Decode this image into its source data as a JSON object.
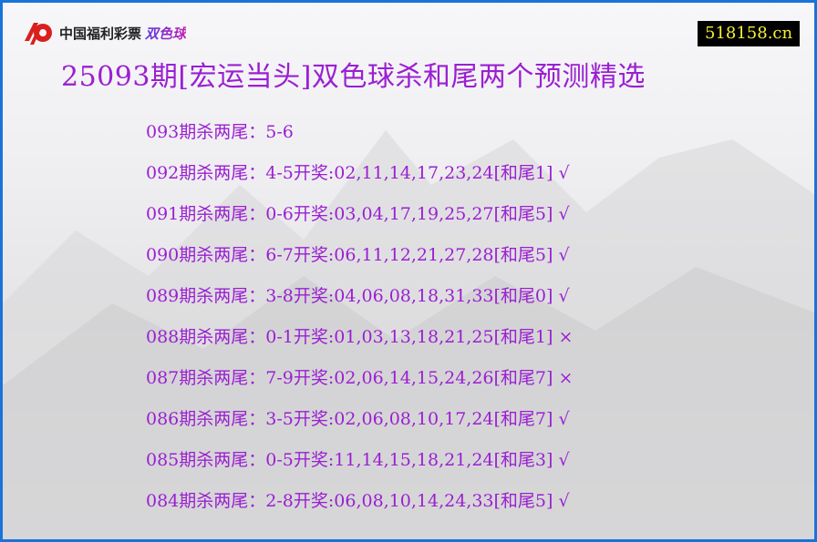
{
  "logo": {
    "text": "中国福利彩票",
    "sub": "双色球",
    "color": "#d9201f"
  },
  "site": "518158.cn",
  "title": "25093期[宏运当头]双色球杀和尾两个预测精选",
  "colors": {
    "text": "#9b1fd2",
    "border": "#1a73d9",
    "site_bg": "#000000",
    "site_text": "#f4ef3a"
  },
  "rows": [
    "093期杀两尾：5-6",
    "092期杀两尾：4-5开奖:02,11,14,17,23,24[和尾1] √",
    "091期杀两尾：0-6开奖:03,04,17,19,25,27[和尾5] √",
    "090期杀两尾：6-7开奖:06,11,12,21,27,28[和尾5] √",
    "089期杀两尾：3-8开奖:04,06,08,18,31,33[和尾0] √",
    "088期杀两尾：0-1开奖:01,03,13,18,21,25[和尾1] ×",
    "087期杀两尾：7-9开奖:02,06,14,15,24,26[和尾7] ×",
    "086期杀两尾：3-5开奖:02,06,08,10,17,24[和尾7] √",
    "085期杀两尾：0-5开奖:11,14,15,18,21,24[和尾3] √",
    "084期杀两尾：2-8开奖:06,08,10,14,24,33[和尾5] √"
  ]
}
